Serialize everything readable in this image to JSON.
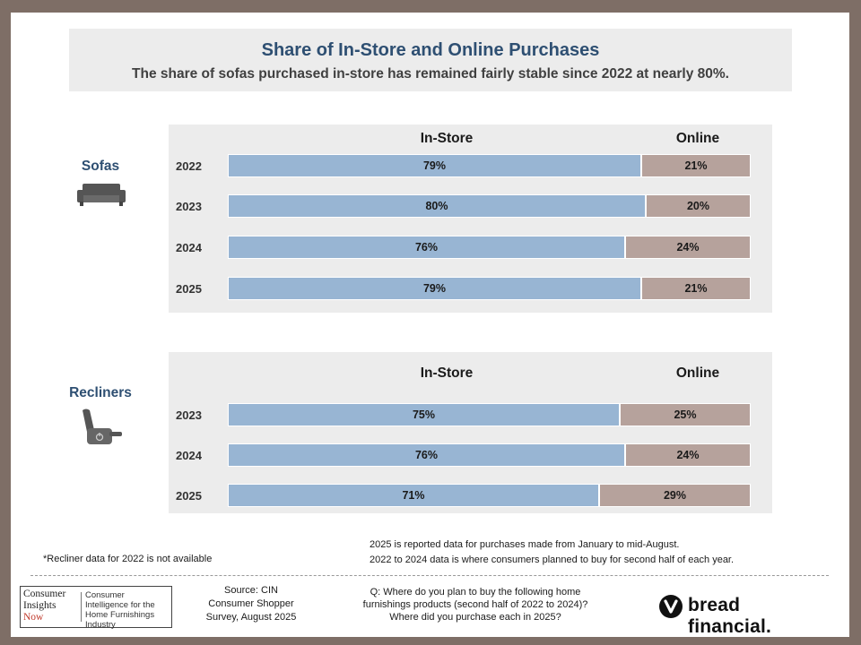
{
  "title": "Share of In-Store and Online Purchases",
  "subtitle": "The share of sofas purchased in-store has remained fairly stable since 2022 at nearly 80%.",
  "colors": {
    "in_store": "#98b5d3",
    "online": "#b6a29c",
    "title": "#2e4f72"
  },
  "chart_data": [
    {
      "type": "bar",
      "stacked": true,
      "orientation": "horizontal",
      "category_label": "Sofas",
      "icon": "sofa-icon",
      "column_headers": [
        "In-Store",
        "Online"
      ],
      "categories": [
        "2022",
        "2023",
        "2024",
        "2025"
      ],
      "series": [
        {
          "name": "In-Store",
          "values": [
            79,
            80,
            76,
            79
          ],
          "labels": [
            "79%",
            "80%",
            "76%",
            "79%"
          ]
        },
        {
          "name": "Online",
          "values": [
            21,
            20,
            24,
            21
          ],
          "labels": [
            "21%",
            "20%",
            "24%",
            "21%"
          ]
        }
      ],
      "xlim": [
        0,
        100
      ]
    },
    {
      "type": "bar",
      "stacked": true,
      "orientation": "horizontal",
      "category_label": "Recliners",
      "icon": "recliner-icon",
      "column_headers": [
        "In-Store",
        "Online"
      ],
      "categories": [
        "2023",
        "2024",
        "2025"
      ],
      "series": [
        {
          "name": "In-Store",
          "values": [
            75,
            76,
            71
          ],
          "labels": [
            "75%",
            "76%",
            "71%"
          ]
        },
        {
          "name": "Online",
          "values": [
            25,
            24,
            29
          ],
          "labels": [
            "25%",
            "24%",
            "29%"
          ]
        }
      ],
      "xlim": [
        0,
        100
      ]
    }
  ],
  "notes": {
    "recliner": "*Recliner data for 2022 is not available",
    "line1": "2025 is reported data for purchases made from January to mid-August.",
    "line2": "2022 to 2024 data is where consumers planned to buy for second half of each year."
  },
  "footer": {
    "logo_left_1": "Consumer",
    "logo_left_2": "Insights",
    "logo_left_3": "Now",
    "logo_right": "Consumer Intelligence for the Home Furnishings Industry",
    "source_1": "Source: CIN",
    "source_2": "Consumer Shopper",
    "source_3": "Survey, August 2025",
    "question_1": "Q: Where do you plan to buy the following home",
    "question_2": "furnishings products (second half of 2022 to 2024)?",
    "question_3": "Where did you purchase each in 2025?",
    "brand": "bread financial."
  }
}
